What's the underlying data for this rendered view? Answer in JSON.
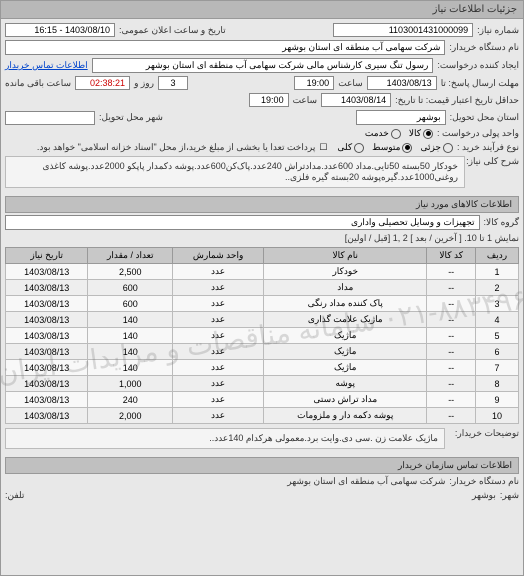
{
  "window": {
    "title": "جزئیات اطلاعات نیاز"
  },
  "header": {
    "req_no_label": "شماره نیاز:",
    "req_no": "1103001431000099",
    "public_date_label": "تاریخ و ساعت اعلان عمومی:",
    "public_date": "1403/08/10 - 16:15",
    "buyer_name_label": "نام دستگاه خریدار:",
    "buyer_name": "شرکت سهامی آب منطقه ای استان بوشهر",
    "creator_label": "ایجاد کننده درخواست:",
    "creator": "رسول تنگ سیری کارشناس مالی شرکت سهامی آب منطقه ای استان بوشهر",
    "contact_link": "اطلاعات تماس خریدار",
    "deadline_label": "مهلت ارسال پاسخ: تا",
    "deadline_date": "1403/08/13",
    "time_label": "ساعت",
    "deadline_time": "19:00",
    "days_label": "روز و",
    "days_left": "3",
    "remain_label": "ساعت باقی مانده",
    "remain_time": "02:38:21",
    "valid_label": "حداقل تاریخ اعتبار قیمت: تا تاریخ:",
    "valid_date": "1403/08/14",
    "valid_time": "19:00",
    "deliver_place_label": "استان محل تحویل:",
    "deliver_place": "بوشهر",
    "deliver_city_label": "شهر محل تحویل:",
    "unit_label": "واحد پولی درخواست :",
    "unit_opts": [
      "کالا",
      "خدمت"
    ],
    "amount_label": "نوع فرآیند خرید :",
    "amount_opts": [
      "جزئی",
      "متوسط",
      "کلی"
    ],
    "pay_note": "پرداخت تعدا یا بخشی از مبلغ خرید،از محل \"اسناد خزانه اسلامی\" خواهد بود.",
    "checkbox_false": "☐"
  },
  "desc": {
    "label": "شرح کلی نیاز:",
    "text": "خودکار 50بسته 50تایی.مداد 600عدد.مدادتراش 240عدد.پاک‌کن600عدد.پوشه دکمدار پاپکو 2000عدد.پوشه کاغذی روغنی1000عدد.گیره‌پوشه 20بسته گیره فلزی.."
  },
  "section2": "اطلاعات کالاهای مورد نیاز",
  "group_label": "گروه کالا:",
  "group_value": "تجهیزات و وسایل تحصیلی واداری",
  "pager": {
    "prefix": "نمایش 1 تا 10.",
    "links": "[ آخرین / بعد ] 2 ,1 [قبل / اولین]"
  },
  "table": {
    "cols": [
      "ردیف",
      "کد کالا",
      "نام کالا",
      "واحد شمارش",
      "تعداد / مقدار",
      "تاریخ نیاز"
    ],
    "rows": [
      [
        "1",
        "--",
        "خودکار",
        "عدد",
        "2,500",
        "1403/08/13"
      ],
      [
        "2",
        "--",
        "مداد",
        "عدد",
        "600",
        "1403/08/13"
      ],
      [
        "3",
        "--",
        "پاک کننده مداد رنگی",
        "عدد",
        "600",
        "1403/08/13"
      ],
      [
        "4",
        "--",
        "ماژیک علامت گذاری",
        "عدد",
        "140",
        "1403/08/13"
      ],
      [
        "5",
        "--",
        "ماژیک",
        "عدد",
        "140",
        "1403/08/13"
      ],
      [
        "6",
        "--",
        "ماژیک",
        "عدد",
        "140",
        "1403/08/13"
      ],
      [
        "7",
        "--",
        "ماژیک",
        "عدد",
        "140",
        "1403/08/13"
      ],
      [
        "8",
        "--",
        "پوشه",
        "عدد",
        "1,000",
        "1403/08/13"
      ],
      [
        "9",
        "--",
        "مداد تراش دستی",
        "عدد",
        "240",
        "1403/08/13"
      ],
      [
        "10",
        "--",
        "پوشه دکمه دار و ملزومات",
        "عدد",
        "2,000",
        "1403/08/13"
      ]
    ]
  },
  "watermark": "۰۲۱-۸۸۳۴۹۶   سامانه مناقصات و مزایدات ایران",
  "buyer_note_label": "توضیحات خریدار:",
  "buyer_note": "ماژیک علامت زن .سی دی.وایت برد.معمولی هرکدام 140عدد..",
  "section3": "اطلاعات تماس سازمان خریدار",
  "org": {
    "name_label": "نام دستگاه خریدار:",
    "name": "شرکت سهامی آب منطقه ای استان بوشهر",
    "city_label": "شهر:",
    "city": "بوشهر",
    "tel_label": "تلفن:"
  }
}
